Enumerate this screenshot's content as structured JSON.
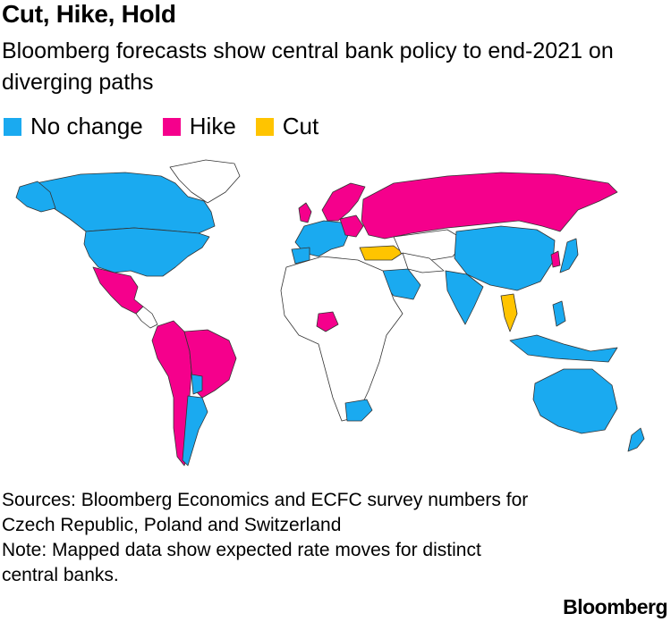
{
  "title": "Cut, Hike, Hold",
  "subtitle": "Bloomberg forecasts show central bank policy to end-2021 on diverging paths",
  "legend": [
    {
      "label": "No change",
      "color": "#1aaaf0"
    },
    {
      "label": "Hike",
      "color": "#f5008c"
    },
    {
      "label": "Cut",
      "color": "#ffc400"
    }
  ],
  "colors": {
    "no_change": "#1aaaf0",
    "hike": "#f5008c",
    "cut": "#ffc400",
    "none": "#ffffff"
  },
  "footer": {
    "sources": "Sources: Bloomberg Economics and ECFC survey numbers for Czech Republic, Poland and Switzerland",
    "note": "Note: Mapped data show expected rate moves for distinct central banks."
  },
  "brand": "Bloomberg"
}
